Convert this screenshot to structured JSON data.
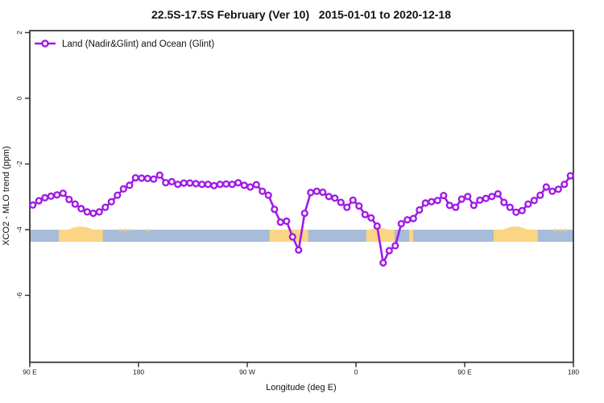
{
  "header": {
    "title": "22.5S-17.5S February (Ver 10)   2015-01-01 to 2020-12-18"
  },
  "legend": {
    "label": "Land (Nadir&Glint) and Ocean (Glint)",
    "marker": "open-circle-on-line"
  },
  "axes": {
    "x": {
      "label": "Longitude (deg E)",
      "ticks": [
        {
          "value": 90,
          "label": "90 E"
        },
        {
          "value": 180,
          "label": "180"
        },
        {
          "value": 270,
          "label": "90 W"
        },
        {
          "value": 360,
          "label": "0"
        },
        {
          "value": 450,
          "label": "90 E"
        },
        {
          "value": 540,
          "label": "180"
        }
      ]
    },
    "y": {
      "label": "XCO2 - MLO trend (ppm)",
      "ticks": [
        {
          "value": 2,
          "label": "2"
        },
        {
          "value": 0,
          "label": "0"
        },
        {
          "value": -2,
          "label": "-2"
        },
        {
          "value": -4,
          "label": "-4"
        },
        {
          "value": -6,
          "label": "-6"
        }
      ]
    }
  },
  "colors": {
    "series": "#A01BE6",
    "marker_fill": "#ffffff",
    "ocean": "#A6BCD8",
    "land": "#FBD583",
    "axis": "#2E2E2E"
  },
  "chart_data": {
    "type": "line",
    "title": "22.5S-17.5S February (Ver 10)   2015-01-01 to 2020-12-18",
    "xlabel": "Longitude (deg E)",
    "ylabel": "XCO2 - MLO trend (ppm)",
    "xlim": [
      90,
      540
    ],
    "ylim": [
      -8,
      2.1
    ],
    "grid": false,
    "legend_position": "top-left-inside",
    "x_note": "longitude axis wraps: 90E to 180 to 90W to 0 to 90E to 180; 5-degree bins",
    "x": [
      92.5,
      97.5,
      102.5,
      107.5,
      112.5,
      117.5,
      122.5,
      127.5,
      132.5,
      137.5,
      142.5,
      147.5,
      152.5,
      157.5,
      162.5,
      167.5,
      172.5,
      177.5,
      182.5,
      187.5,
      192.5,
      197.5,
      202.5,
      207.5,
      212.5,
      217.5,
      222.5,
      227.5,
      232.5,
      237.5,
      242.5,
      247.5,
      252.5,
      257.5,
      262.5,
      267.5,
      272.5,
      277.5,
      282.5,
      287.5,
      292.5,
      297.5,
      302.5,
      307.5,
      312.5,
      317.5,
      322.5,
      327.5,
      332.5,
      337.5,
      342.5,
      347.5,
      352.5,
      357.5,
      362.5,
      367.5,
      372.5,
      377.5,
      382.5,
      387.5,
      392.5,
      397.5,
      402.5,
      407.5,
      412.5,
      417.5,
      422.5,
      427.5,
      432.5,
      437.5,
      442.5,
      447.5,
      452.5,
      457.5,
      462.5,
      467.5,
      472.5,
      477.5,
      482.5,
      487.5,
      492.5,
      497.5,
      502.5,
      507.5,
      512.5,
      517.5,
      522.5,
      527.5,
      532.5,
      537.5
    ],
    "series": [
      {
        "name": "Land (Nadir&Glint) and Ocean (Glint)",
        "values": [
          -3.25,
          -3.12,
          -3.03,
          -2.98,
          -2.94,
          -2.89,
          -3.08,
          -3.22,
          -3.36,
          -3.46,
          -3.5,
          -3.46,
          -3.32,
          -3.15,
          -2.95,
          -2.76,
          -2.65,
          -2.42,
          -2.43,
          -2.44,
          -2.46,
          -2.34,
          -2.57,
          -2.54,
          -2.62,
          -2.58,
          -2.58,
          -2.6,
          -2.62,
          -2.62,
          -2.66,
          -2.62,
          -2.61,
          -2.62,
          -2.57,
          -2.65,
          -2.7,
          -2.63,
          -2.83,
          -2.95,
          -3.38,
          -3.77,
          -3.74,
          -4.22,
          -4.62,
          -3.5,
          -2.87,
          -2.83,
          -2.86,
          -2.99,
          -3.04,
          -3.17,
          -3.32,
          -3.1,
          -3.28,
          -3.54,
          -3.64,
          -3.89,
          -5.01,
          -4.64,
          -4.49,
          -3.82,
          -3.7,
          -3.66,
          -3.4,
          -3.19,
          -3.15,
          -3.11,
          -2.96,
          -3.26,
          -3.32,
          -3.07,
          -2.99,
          -3.26,
          -3.1,
          -3.05,
          -2.99,
          -2.91,
          -3.17,
          -3.32,
          -3.47,
          -3.42,
          -3.22,
          -3.11,
          -2.95,
          -2.7,
          -2.83,
          -2.77,
          -2.62,
          -2.36
        ]
      }
    ],
    "surface_band": {
      "description": "land/ocean strip along longitude, yellow = land, blue = ocean",
      "top_value": -4.0,
      "bottom_value": -4.37,
      "land_segments": [
        [
          114,
          150.5
        ],
        [
          288.5,
          320.5
        ],
        [
          368.5,
          392
        ],
        [
          404,
          407.5
        ],
        [
          474,
          510.5
        ]
      ],
      "land_humps": [
        [
          120.5,
          143.5,
          4.5
        ],
        [
          370,
          388,
          3
        ],
        [
          480.5,
          503.5,
          4.5
        ]
      ],
      "island_marks": [
        [
          163.5,
          166.5
        ],
        [
          168,
          170.5
        ],
        [
          172.5,
          174.5
        ],
        [
          186,
          188.5
        ],
        [
          523.5,
          526.5
        ],
        [
          528,
          530.5
        ],
        [
          532.5,
          535
        ]
      ]
    }
  }
}
